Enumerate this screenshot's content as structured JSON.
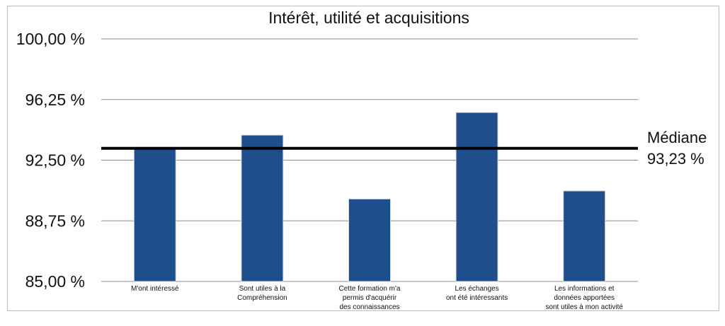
{
  "chart_data": {
    "type": "bar",
    "title": "Intérêt, utilité et acquisitions",
    "categories": [
      [
        "M'ont intéressé"
      ],
      [
        "Sont utiles à la",
        "Compréhension"
      ],
      [
        "Cette formation m'a",
        "permis d'acquérir",
        "des connaissances"
      ],
      [
        "Les échanges",
        "ont été intéressants"
      ],
      [
        "Les informations et",
        "données apportées",
        "sont utiles à mon activité"
      ]
    ],
    "values": [
      93.3,
      94.05,
      90.1,
      95.45,
      90.6
    ],
    "ylim": [
      85.0,
      100.0
    ],
    "yticks": [
      85.0,
      88.75,
      92.5,
      96.25,
      100.0
    ],
    "ytick_labels": [
      "85,00 %",
      "88,75 %",
      "92,50 %",
      "96,25 %",
      "100,00 %"
    ],
    "grid": true,
    "bar_color": "#1f4e8c",
    "median": {
      "value": 93.23,
      "label": "Médiane",
      "value_label": "93,23 %",
      "color": "#000000"
    }
  }
}
